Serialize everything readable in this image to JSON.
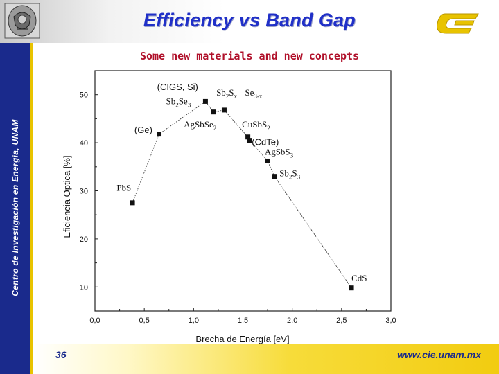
{
  "slide": {
    "title": "Efficiency vs Band Gap",
    "subtitle": "Some new materials and new concepts",
    "vertical_label": "Centro de Investigación en Energía, UNAM",
    "page_number": "36",
    "url": "www.cie.unam.mx",
    "colors": {
      "title": "#2030c8",
      "subtitle": "#b0102a",
      "side_band": "#1a2a8c",
      "accent": "#f2cc10"
    }
  },
  "chart_data": {
    "type": "line",
    "xlabel": "Brecha de Energía [eV]",
    "ylabel": "Eficiencia Optica [%]",
    "xlim": [
      0,
      3
    ],
    "ylim": [
      5,
      55
    ],
    "xticks": [
      0,
      0.5,
      1,
      1.5,
      2,
      2.5,
      3
    ],
    "xtick_labels": [
      "0,0",
      "0,5",
      "1,0",
      "1,5",
      "2,0",
      "2,5",
      "3,0"
    ],
    "yticks": [
      10,
      20,
      30,
      40,
      50
    ],
    "ytick_labels": [
      "10",
      "20",
      "30",
      "40",
      "50"
    ],
    "series": [
      {
        "name": "efficiency",
        "x": [
          0.38,
          0.65,
          1.12,
          1.2,
          1.31,
          1.55,
          1.57,
          1.75,
          1.82,
          2.6
        ],
        "y": [
          27.5,
          41.8,
          48.6,
          46.4,
          46.8,
          41.2,
          40.5,
          36.2,
          33.0,
          9.8
        ]
      }
    ],
    "annotations": [
      {
        "text": "Pb",
        "sub": "",
        "tail": "S",
        "tail_sub": "",
        "x": 0.22,
        "y": 30.0,
        "font": "serif"
      },
      {
        "text": "(Ge)",
        "sub": "",
        "tail": "",
        "tail_sub": "",
        "x": 0.4,
        "y": 42.0,
        "font": "sans"
      },
      {
        "text": "(CIGS, Si)",
        "sub": "",
        "tail": "",
        "tail_sub": "",
        "x": 0.63,
        "y": 51.0,
        "font": "sans"
      },
      {
        "text": "Sb",
        "sub": "2",
        "tail": "Se",
        "tail_sub": "3",
        "x": 0.72,
        "y": 48.0,
        "font": "serif"
      },
      {
        "text": "Sb",
        "sub": "2",
        "tail": "S",
        "tail_sub": "x",
        "x": 1.23,
        "y": 49.8,
        "font": "serif"
      },
      {
        "text": "Se",
        "sub": "3-x",
        "tail": "",
        "tail_sub": "",
        "x": 1.52,
        "y": 49.8,
        "font": "serif"
      },
      {
        "text": "AgSbSe",
        "sub": "2",
        "tail": "",
        "tail_sub": "",
        "x": 0.9,
        "y": 43.2,
        "font": "serif"
      },
      {
        "text": "CuSbS",
        "sub": "2",
        "tail": "",
        "tail_sub": "",
        "x": 1.49,
        "y": 43.2,
        "font": "serif"
      },
      {
        "text": "(CdTe)",
        "sub": "",
        "tail": "",
        "tail_sub": "",
        "x": 1.59,
        "y": 39.5,
        "font": "sans"
      },
      {
        "text": "AgSbS",
        "sub": "3",
        "tail": "",
        "tail_sub": "",
        "x": 1.72,
        "y": 37.5,
        "font": "serif"
      },
      {
        "text": "Sb",
        "sub": "2",
        "tail": "S",
        "tail_sub": "3",
        "x": 1.87,
        "y": 33.0,
        "font": "serif"
      },
      {
        "text": "CdS",
        "sub": "",
        "tail": "",
        "tail_sub": "",
        "x": 2.6,
        "y": 11.2,
        "font": "serif"
      }
    ]
  }
}
